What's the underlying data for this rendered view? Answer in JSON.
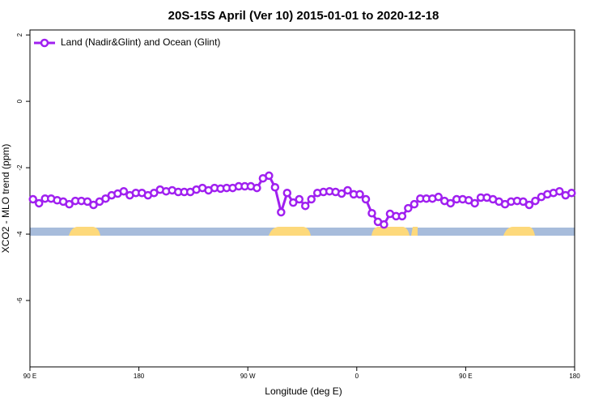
{
  "chart_data": {
    "type": "line",
    "title": "20S-15S April (Ver 10)   2015-01-01 to 2020-12-18",
    "xlabel": "Longitude (deg E)",
    "ylabel": "XCO2 - MLO trend (ppm)",
    "xlim": [
      90,
      540
    ],
    "ylim": [
      -8,
      2.15
    ],
    "xticks": [
      {
        "value": 90,
        "label": "90 E"
      },
      180,
      {
        "value": 270,
        "label": "90 W"
      },
      {
        "value": 360,
        "label": "0"
      },
      {
        "value": 450,
        "label": "90 E"
      },
      {
        "value": 540,
        "label": "180"
      }
    ],
    "yticks": [
      2,
      0,
      -2,
      -4,
      -6
    ],
    "legend": "upper left",
    "x": [
      92.5,
      97.5,
      102.5,
      107.5,
      112.5,
      117.5,
      122.5,
      127.5,
      132.5,
      137.5,
      142.5,
      147.5,
      152.5,
      157.5,
      162.5,
      167.5,
      172.5,
      177.5,
      182.5,
      187.5,
      192.5,
      197.5,
      202.5,
      207.5,
      212.5,
      217.5,
      222.5,
      227.5,
      232.5,
      237.5,
      242.5,
      247.5,
      252.5,
      257.5,
      262.5,
      267.5,
      272.5,
      277.5,
      282.5,
      287.5,
      292.5,
      297.5,
      302.5,
      307.5,
      312.5,
      317.5,
      322.5,
      327.5,
      332.5,
      337.5,
      342.5,
      347.5,
      352.5,
      357.5,
      362.5,
      367.5,
      372.5,
      377.5,
      382.5,
      387.5,
      392.5,
      397.5,
      402.5,
      407.5,
      412.5,
      417.5,
      422.5,
      427.5,
      432.5,
      437.5,
      442.5,
      447.5,
      452.5,
      457.5,
      462.5,
      467.5,
      472.5,
      477.5,
      482.5,
      487.5,
      492.5,
      497.5,
      502.5,
      507.5,
      512.5,
      517.5,
      522.5,
      527.5,
      532.5,
      537.5
    ],
    "series": [
      {
        "name": "Land (Nadir&Glint) and Ocean (Glint)",
        "color": "#a020f0",
        "values": [
          -2.95,
          -3.07,
          -2.93,
          -2.93,
          -2.98,
          -3.02,
          -3.1,
          -3.0,
          -3.0,
          -3.02,
          -3.12,
          -3.02,
          -2.93,
          -2.83,
          -2.78,
          -2.71,
          -2.83,
          -2.76,
          -2.76,
          -2.83,
          -2.76,
          -2.66,
          -2.71,
          -2.68,
          -2.73,
          -2.73,
          -2.73,
          -2.66,
          -2.61,
          -2.68,
          -2.61,
          -2.63,
          -2.61,
          -2.61,
          -2.56,
          -2.56,
          -2.56,
          -2.61,
          -2.32,
          -2.24,
          -2.59,
          -3.34,
          -2.76,
          -3.05,
          -2.95,
          -3.15,
          -2.95,
          -2.76,
          -2.73,
          -2.71,
          -2.73,
          -2.78,
          -2.68,
          -2.8,
          -2.8,
          -2.95,
          -3.37,
          -3.63,
          -3.71,
          -3.39,
          -3.46,
          -3.46,
          -3.22,
          -3.1,
          -2.93,
          -2.93,
          -2.93,
          -2.88,
          -3.0,
          -3.07,
          -2.95,
          -2.95,
          -2.98,
          -3.07,
          -2.9,
          -2.9,
          -2.95,
          -3.02,
          -3.1,
          -3.02,
          -3.0,
          -3.02,
          -3.12,
          -3.0,
          -2.88,
          -2.8,
          -2.76,
          -2.71,
          -2.83,
          -2.76
        ]
      }
    ]
  }
}
